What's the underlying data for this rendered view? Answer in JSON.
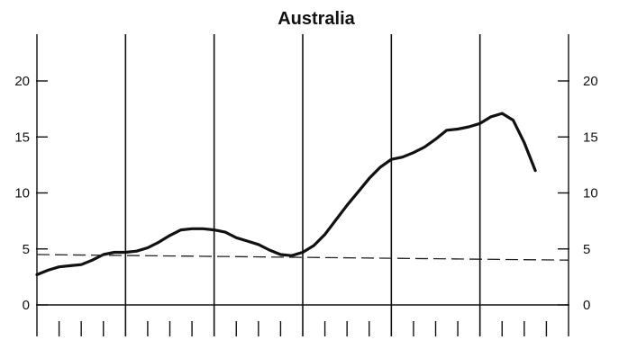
{
  "chart_data": {
    "type": "line",
    "title": "Australia",
    "xlabel": "",
    "ylabel": "",
    "ylim": [
      0,
      25
    ],
    "y_ticks": [
      0,
      5,
      10,
      15,
      20
    ],
    "y_tick_labels_left": [
      "0",
      "5",
      "10",
      "15",
      "20"
    ],
    "y_tick_labels_right": [
      "0",
      "5",
      "10",
      "15",
      "20"
    ],
    "x_unlabeled": true,
    "x_range": [
      0,
      24
    ],
    "x_major_ticks": [
      0,
      4,
      8,
      12,
      16,
      20,
      24
    ],
    "x_minor_ticks_per_interval": 4,
    "grid": "vertical major lines only",
    "legend": "none",
    "series": [
      {
        "style": "solid",
        "points": [
          [
            0.0,
            2.7
          ],
          [
            0.5,
            3.1
          ],
          [
            1.0,
            3.4
          ],
          [
            1.5,
            3.5
          ],
          [
            2.0,
            3.6
          ],
          [
            2.5,
            4.0
          ],
          [
            3.0,
            4.5
          ],
          [
            3.5,
            4.7
          ],
          [
            4.0,
            4.7
          ],
          [
            4.5,
            4.8
          ],
          [
            5.0,
            5.1
          ],
          [
            5.5,
            5.6
          ],
          [
            6.0,
            6.2
          ],
          [
            6.5,
            6.7
          ],
          [
            7.0,
            6.8
          ],
          [
            7.5,
            6.8
          ],
          [
            8.0,
            6.7
          ],
          [
            8.5,
            6.5
          ],
          [
            9.0,
            6.0
          ],
          [
            9.5,
            5.7
          ],
          [
            10.0,
            5.4
          ],
          [
            10.5,
            4.9
          ],
          [
            11.0,
            4.5
          ],
          [
            11.5,
            4.4
          ],
          [
            12.0,
            4.7
          ],
          [
            12.5,
            5.3
          ],
          [
            13.0,
            6.3
          ],
          [
            13.5,
            7.6
          ],
          [
            14.0,
            8.9
          ],
          [
            14.5,
            10.1
          ],
          [
            15.0,
            11.3
          ],
          [
            15.5,
            12.3
          ],
          [
            16.0,
            13.0
          ],
          [
            16.5,
            13.2
          ],
          [
            17.0,
            13.6
          ],
          [
            17.5,
            14.1
          ],
          [
            18.0,
            14.8
          ],
          [
            18.5,
            15.6
          ],
          [
            19.0,
            15.7
          ],
          [
            19.5,
            15.9
          ],
          [
            20.0,
            16.2
          ],
          [
            20.5,
            16.8
          ],
          [
            21.0,
            17.1
          ],
          [
            21.5,
            16.5
          ],
          [
            22.0,
            14.5
          ],
          [
            22.5,
            12.0
          ]
        ]
      },
      {
        "style": "dashed",
        "points": [
          [
            0,
            4.5
          ],
          [
            24,
            4.0
          ]
        ]
      }
    ]
  }
}
